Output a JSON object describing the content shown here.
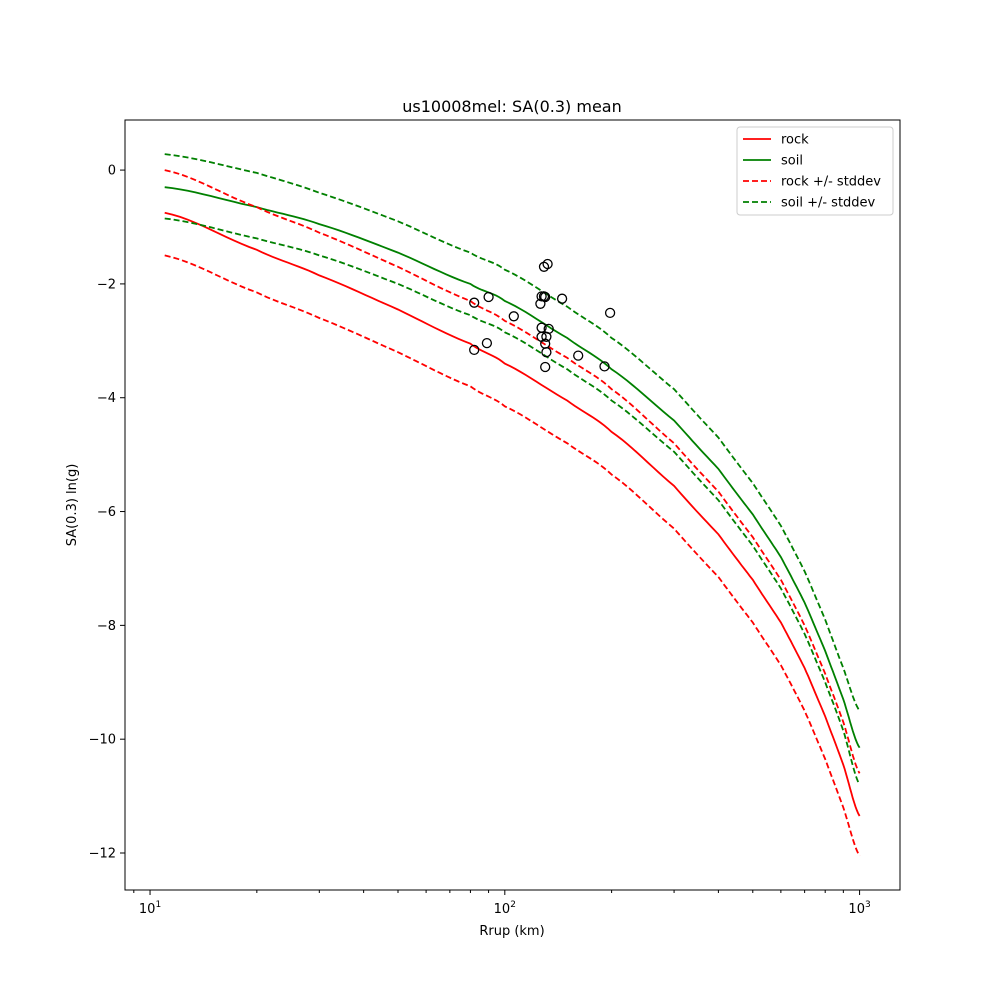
{
  "chart_data": {
    "type": "line",
    "title": "us10008mel: SA(0.3) mean",
    "xlabel": "Rrup (km)",
    "ylabel": "SA(0.3) ln(g)",
    "xscale": "log",
    "xlim": [
      8.5,
      1300
    ],
    "ylim": [
      -12.65,
      0.88
    ],
    "grid": false,
    "legend_position": "top-right",
    "x_ticks": [
      {
        "value": 10,
        "base": "10",
        "exp": "1"
      },
      {
        "value": 100,
        "base": "10",
        "exp": "2"
      },
      {
        "value": 1000,
        "base": "10",
        "exp": "3"
      }
    ],
    "y_ticks": [
      {
        "value": 0,
        "label": "0"
      },
      {
        "value": -2,
        "label": "−2"
      },
      {
        "value": -4,
        "label": "−4"
      },
      {
        "value": -6,
        "label": "−6"
      },
      {
        "value": -8,
        "label": "−8"
      },
      {
        "value": -10,
        "label": "−10"
      },
      {
        "value": -12,
        "label": "−12"
      }
    ],
    "legend": [
      {
        "label": "rock",
        "color": "#ff0000",
        "dashed": false
      },
      {
        "label": "soil",
        "color": "#008000",
        "dashed": false
      },
      {
        "label": "rock +/- stddev",
        "color": "#ff0000",
        "dashed": true
      },
      {
        "label": "soil +/- stddev",
        "color": "#008000",
        "dashed": true
      }
    ],
    "x": [
      11,
      20,
      30,
      50,
      80,
      100,
      150,
      200,
      300,
      400,
      500,
      600,
      700,
      800,
      900,
      1000
    ],
    "series": [
      {
        "name": "rock",
        "color": "#ff0000",
        "dashed": false,
        "values": [
          -0.75,
          -1.4,
          -1.85,
          -2.45,
          -3.05,
          -3.4,
          -4.05,
          -4.6,
          -5.55,
          -6.4,
          -7.2,
          -7.95,
          -8.75,
          -9.6,
          -10.45,
          -11.35
        ]
      },
      {
        "name": "soil",
        "color": "#008000",
        "dashed": false,
        "values": [
          -0.3,
          -0.65,
          -0.95,
          -1.45,
          -2.0,
          -2.3,
          -2.95,
          -3.5,
          -4.4,
          -5.25,
          -6.05,
          -6.8,
          -7.6,
          -8.45,
          -9.3,
          -10.15
        ]
      },
      {
        "name": "rock +stddev",
        "color": "#ff0000",
        "dashed": true,
        "values": [
          0.0,
          -0.65,
          -1.1,
          -1.7,
          -2.3,
          -2.65,
          -3.3,
          -3.85,
          -4.8,
          -5.65,
          -6.45,
          -7.2,
          -8.0,
          -8.85,
          -9.7,
          -10.6
        ]
      },
      {
        "name": "rock -stddev",
        "color": "#ff0000",
        "dashed": true,
        "values": [
          -1.5,
          -2.15,
          -2.6,
          -3.2,
          -3.8,
          -4.15,
          -4.8,
          -5.35,
          -6.3,
          -7.15,
          -7.95,
          -8.7,
          -9.5,
          -10.35,
          -11.2,
          -12.05
        ]
      },
      {
        "name": "soil +stddev",
        "color": "#008000",
        "dashed": true,
        "values": [
          0.28,
          -0.05,
          -0.4,
          -0.9,
          -1.45,
          -1.75,
          -2.4,
          -2.95,
          -3.85,
          -4.7,
          -5.5,
          -6.25,
          -7.05,
          -7.9,
          -8.75,
          -9.5
        ]
      },
      {
        "name": "soil -stddev",
        "color": "#008000",
        "dashed": true,
        "values": [
          -0.85,
          -1.2,
          -1.5,
          -2.0,
          -2.55,
          -2.85,
          -3.5,
          -4.05,
          -4.95,
          -5.8,
          -6.6,
          -7.35,
          -8.15,
          -9.0,
          -9.85,
          -10.8
        ]
      }
    ],
    "scatter": [
      {
        "x": 82,
        "y": -2.33
      },
      {
        "x": 90,
        "y": -2.23
      },
      {
        "x": 82,
        "y": -3.16
      },
      {
        "x": 89,
        "y": -3.04
      },
      {
        "x": 106,
        "y": -2.57
      },
      {
        "x": 126,
        "y": -2.35
      },
      {
        "x": 127,
        "y": -2.22
      },
      {
        "x": 129,
        "y": -2.22
      },
      {
        "x": 130,
        "y": -2.23
      },
      {
        "x": 129,
        "y": -1.7
      },
      {
        "x": 132,
        "y": -1.65
      },
      {
        "x": 127,
        "y": -2.77
      },
      {
        "x": 127,
        "y": -2.93
      },
      {
        "x": 131,
        "y": -2.93
      },
      {
        "x": 133,
        "y": -2.79
      },
      {
        "x": 130,
        "y": -3.05
      },
      {
        "x": 131,
        "y": -3.2
      },
      {
        "x": 130,
        "y": -3.46
      },
      {
        "x": 145,
        "y": -2.26
      },
      {
        "x": 161,
        "y": -3.26
      },
      {
        "x": 191,
        "y": -3.45
      },
      {
        "x": 198,
        "y": -2.51
      }
    ]
  }
}
